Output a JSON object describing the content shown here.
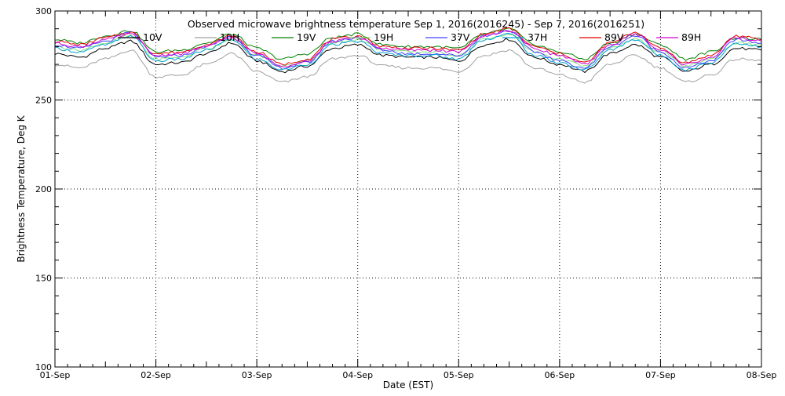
{
  "chart_data": {
    "type": "line",
    "title": "Observed microwave brightness temperature Sep  1, 2016(2016245) - Sep  7, 2016(2016251)",
    "xlabel": "Date (EST)",
    "ylabel": "Brightness Temperature, Deg K",
    "ylim": [
      100,
      300
    ],
    "xlim": [
      0,
      7
    ],
    "yticks": [
      100,
      150,
      200,
      250,
      300
    ],
    "ytick_labels": [
      "100",
      "150",
      "200",
      "250",
      "300"
    ],
    "xticks": [
      0,
      1,
      2,
      3,
      4,
      5,
      6,
      7
    ],
    "xtick_labels": [
      "01-Sep",
      "02-Sep",
      "03-Sep",
      "04-Sep",
      "05-Sep",
      "06-Sep",
      "07-Sep",
      "08-Sep"
    ],
    "grid": true,
    "legend_position": "top",
    "x": [
      0,
      0.25,
      0.5,
      0.75,
      1,
      1.25,
      1.5,
      1.75,
      2,
      2.25,
      2.5,
      2.75,
      3,
      3.25,
      3.5,
      3.75,
      4,
      4.25,
      4.5,
      4.75,
      5,
      5.25,
      5.5,
      5.75,
      6,
      6.25,
      6.5,
      6.75,
      7
    ],
    "series": [
      {
        "name": "10V",
        "color": "#000000",
        "values": [
          276,
          274,
          279,
          283,
          270,
          271,
          276,
          282,
          272,
          266,
          269,
          279,
          281,
          275,
          274,
          274,
          272,
          281,
          284,
          274,
          270,
          266,
          276,
          281,
          274,
          266,
          270,
          279,
          278
        ]
      },
      {
        "name": "10H",
        "color": "#a0a0a0",
        "values": [
          270,
          268,
          273,
          278,
          263,
          264,
          270,
          276,
          266,
          260,
          263,
          273,
          275,
          269,
          268,
          268,
          266,
          275,
          278,
          268,
          264,
          260,
          270,
          275,
          268,
          260,
          264,
          273,
          272
        ]
      },
      {
        "name": "19V",
        "color": "#008000",
        "values": [
          284,
          282,
          286,
          289,
          277,
          278,
          282,
          287,
          279,
          273,
          276,
          285,
          287,
          281,
          280,
          280,
          279,
          287,
          290,
          281,
          277,
          273,
          282,
          287,
          281,
          273,
          277,
          285,
          284
        ]
      },
      {
        "name": "19H",
        "color": "#80e080",
        "values": [
          280,
          278,
          282,
          286,
          273,
          274,
          279,
          284,
          275,
          269,
          272,
          282,
          284,
          278,
          277,
          277,
          275,
          284,
          287,
          277,
          273,
          269,
          279,
          284,
          277,
          269,
          273,
          282,
          281
        ]
      },
      {
        "name": "37V",
        "color": "#4040ff",
        "values": [
          281,
          279,
          283,
          288,
          274,
          275,
          280,
          286,
          275,
          268,
          271,
          283,
          285,
          278,
          276,
          276,
          275,
          286,
          289,
          277,
          272,
          268,
          280,
          286,
          277,
          268,
          272,
          284,
          282
        ]
      },
      {
        "name": "37H",
        "color": "#00a0d0",
        "values": [
          279,
          277,
          281,
          286,
          272,
          273,
          278,
          284,
          273,
          267,
          270,
          281,
          283,
          276,
          275,
          275,
          273,
          284,
          287,
          275,
          271,
          267,
          278,
          284,
          275,
          267,
          271,
          282,
          280
        ]
      },
      {
        "name": "89V",
        "color": "#e00000",
        "values": [
          283,
          281,
          285,
          288,
          276,
          277,
          281,
          286,
          277,
          270,
          273,
          284,
          286,
          280,
          279,
          279,
          278,
          287,
          290,
          280,
          276,
          271,
          282,
          288,
          279,
          271,
          275,
          286,
          284
        ]
      },
      {
        "name": "89H",
        "color": "#d000d0",
        "values": [
          282,
          280,
          284,
          287,
          275,
          276,
          280,
          285,
          276,
          269,
          272,
          283,
          285,
          279,
          278,
          278,
          277,
          286,
          289,
          279,
          275,
          270,
          281,
          287,
          278,
          270,
          274,
          285,
          283
        ]
      }
    ]
  }
}
